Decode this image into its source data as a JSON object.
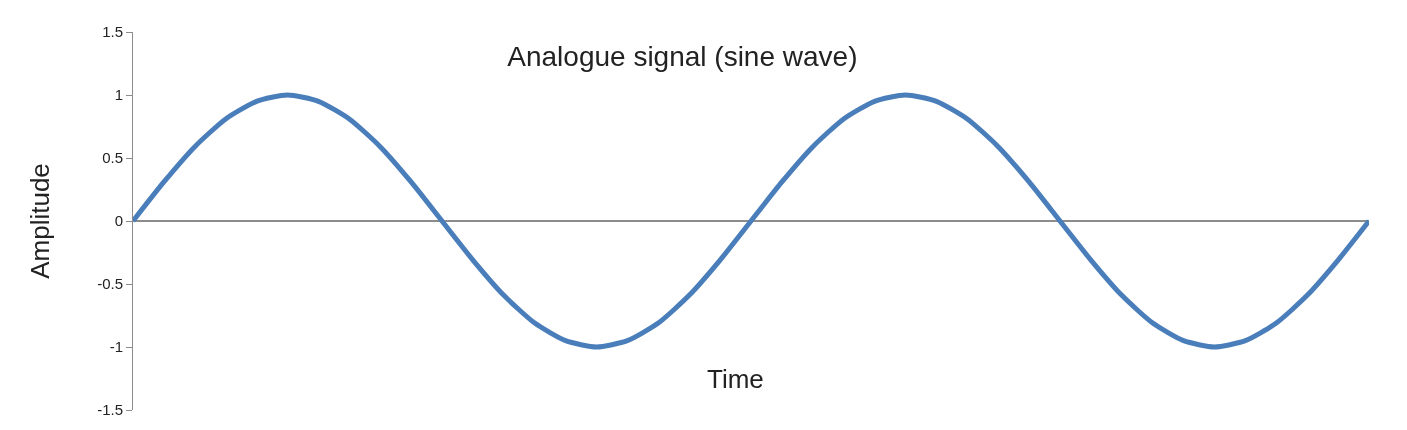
{
  "chart_data": {
    "type": "line",
    "title": "Analogue signal (sine wave)",
    "xlabel": "Time",
    "ylabel": "Amplitude",
    "categories": [
      null,
      null,
      null,
      null,
      null,
      null,
      null,
      null,
      null,
      null,
      null,
      null,
      null,
      null,
      null,
      null,
      null,
      null,
      null,
      null,
      null,
      null,
      null,
      null,
      null,
      null,
      null,
      null,
      null,
      null,
      null,
      null,
      null,
      null,
      null,
      null,
      null,
      null,
      null,
      null,
      null
    ],
    "series": [
      {
        "color": "#4a7ebb",
        "values": [
          0,
          0.31,
          0.59,
          0.81,
          0.95,
          1,
          0.95,
          0.81,
          0.59,
          0.31,
          0,
          -0.31,
          -0.59,
          -0.81,
          -0.95,
          -1,
          -0.95,
          -0.81,
          -0.59,
          -0.31,
          0,
          0.31,
          0.59,
          0.81,
          0.95,
          1,
          0.95,
          0.81,
          0.59,
          0.31,
          0,
          -0.31,
          -0.59,
          -0.81,
          -0.95,
          -1,
          -0.95,
          -0.81,
          -0.59,
          -0.31,
          0
        ]
      }
    ],
    "ylim": [
      -1.5,
      1.5
    ],
    "yticks": [
      -1.5,
      -1,
      -0.5,
      0,
      0.5,
      1,
      1.5
    ],
    "tick_labels": "y"
  }
}
